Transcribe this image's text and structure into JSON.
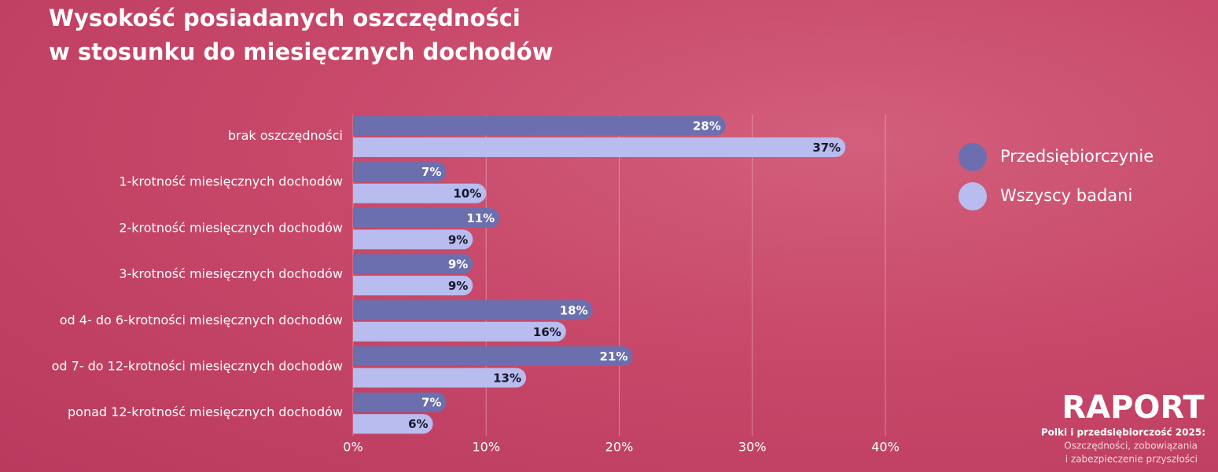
{
  "chart_data": {
    "type": "hbar",
    "title": [
      "Wysokość posiadanych oszczędności",
      "w stosunku do miesięcznych dochodów"
    ],
    "categories": [
      "brak oszczędności",
      "1-krotność miesięcznych dochodów",
      "2-krotność miesięcznych dochodów",
      "3-krotność miesięcznych dochodów",
      "od 4- do 6-krotności miesięcznych dochodów",
      "od 7- do 12-krotności miesięcznych dochodów",
      "ponad 12-krotność miesięcznych dochodów"
    ],
    "series": [
      {
        "name": "Przedsiębiorczynie",
        "color": "#6b6fae",
        "label_color": "#ffffff",
        "values": [
          28,
          7,
          11,
          9,
          18,
          21,
          7
        ],
        "value_labels": [
          "28%",
          "7%",
          "11%",
          "9%",
          "18%",
          "21%",
          "7%"
        ]
      },
      {
        "name": "Wszyscy badani",
        "color": "#b8bcee",
        "label_color": "#16162a",
        "values": [
          37,
          10,
          9,
          9,
          16,
          13,
          6
        ],
        "value_labels": [
          "37%",
          "10%",
          "9%",
          "9%",
          "16%",
          "13%",
          "6%"
        ]
      }
    ],
    "xlim": [
      0,
      40
    ],
    "xticks": [
      {
        "value": 0,
        "label": "0%"
      },
      {
        "value": 10,
        "label": "10%"
      },
      {
        "value": 20,
        "label": "20%"
      },
      {
        "value": 30,
        "label": "30%"
      },
      {
        "value": 40,
        "label": "40%"
      }
    ],
    "grid": true,
    "legend": "right"
  },
  "branding": {
    "name": "RAPORT",
    "subtitle": "Polki i przedsiębiorczość 2025:",
    "lines": [
      "Oszczędności, zobowiązania",
      "i zabezpieczenie przyszłości"
    ]
  }
}
